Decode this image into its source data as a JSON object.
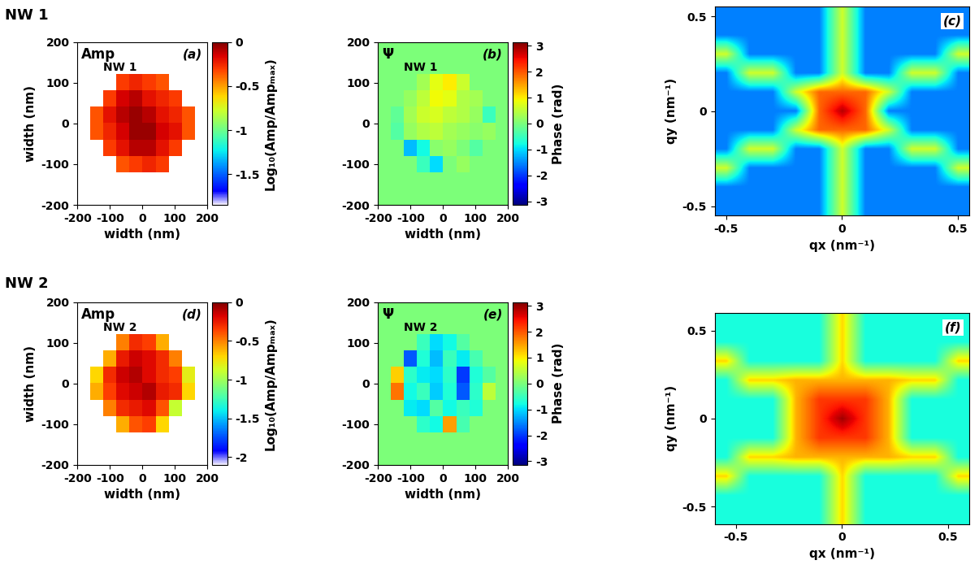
{
  "row_titles": [
    "NW 1",
    "NW 2"
  ],
  "chart_data": [
    {
      "type": "heatmap",
      "panel": "(a)",
      "labels": [
        "Amp",
        "NW 1"
      ],
      "xlabel": "width (nm)",
      "ylabel": "width (nm)",
      "xlim": [
        -200,
        200
      ],
      "ylim": [
        -200,
        200
      ],
      "xticks": [
        -200,
        -100,
        0,
        100,
        200
      ],
      "yticks": [
        -200,
        -100,
        0,
        100,
        200
      ],
      "zlim": [
        -1.85,
        0
      ],
      "zticks": [
        0,
        -0.5,
        -1,
        -1.5
      ],
      "zlabel": "Log₁₀(Amp/Ampₘₐₓ)",
      "cells": [
        [
          null,
          null,
          null,
          null,
          null,
          null,
          null,
          null,
          null,
          null
        ],
        [
          null,
          null,
          null,
          null,
          null,
          null,
          null,
          null,
          null,
          null
        ],
        [
          null,
          null,
          null,
          -0.3,
          -0.25,
          -0.3,
          -0.35,
          null,
          null,
          null
        ],
        [
          null,
          null,
          -0.3,
          -0.15,
          -0.1,
          -0.2,
          -0.25,
          -0.3,
          null,
          null
        ],
        [
          null,
          -0.35,
          -0.2,
          -0.1,
          -0.05,
          -0.1,
          -0.2,
          -0.25,
          -0.35,
          null
        ],
        [
          null,
          -0.35,
          -0.25,
          -0.15,
          -0.05,
          -0.05,
          -0.15,
          -0.2,
          -0.35,
          null
        ],
        [
          null,
          null,
          -0.3,
          -0.2,
          -0.1,
          -0.1,
          -0.2,
          -0.3,
          null,
          null
        ],
        [
          null,
          null,
          null,
          -0.35,
          -0.3,
          -0.25,
          -0.3,
          null,
          null,
          null
        ],
        [
          null,
          null,
          null,
          null,
          null,
          null,
          null,
          null,
          null,
          null
        ],
        [
          null,
          null,
          null,
          null,
          null,
          null,
          null,
          null,
          null,
          null
        ]
      ]
    },
    {
      "type": "heatmap",
      "panel": "(b)",
      "labels": [
        "Ψ",
        "NW 1"
      ],
      "xlabel": "width (nm)",
      "ylabel": "",
      "xlim": [
        -200,
        200
      ],
      "ylim": [
        -200,
        200
      ],
      "xticks": [
        -200,
        -100,
        0,
        100,
        200
      ],
      "yticks": [
        -200,
        -100,
        0,
        100,
        200
      ],
      "zlim": [
        -3.14,
        3.14
      ],
      "zticks": [
        3,
        2,
        1,
        0,
        -1,
        -2,
        -3
      ],
      "zlabel": "Phase (rad)",
      "cells": [
        [
          0,
          0,
          0,
          0,
          0,
          0,
          0,
          0,
          0,
          0
        ],
        [
          0,
          0,
          0,
          0,
          0,
          0,
          0,
          0,
          0,
          0
        ],
        [
          0,
          0,
          0,
          0.3,
          0.8,
          1.0,
          0.6,
          0,
          0,
          0
        ],
        [
          0,
          0,
          0.2,
          0.5,
          0.9,
          0.8,
          0.4,
          0.3,
          0,
          0
        ],
        [
          0,
          -0.2,
          0.3,
          0.6,
          0.7,
          0.5,
          0.4,
          0.2,
          -0.5,
          0
        ],
        [
          0,
          -0.3,
          0.2,
          0.4,
          0.5,
          0.3,
          0.2,
          0.1,
          0.2,
          0
        ],
        [
          0,
          0,
          -1.2,
          -0.8,
          0.1,
          0.2,
          0.0,
          -0.3,
          0,
          0
        ],
        [
          0,
          0,
          0,
          -0.5,
          -1.0,
          0.0,
          0.2,
          0,
          0,
          0
        ],
        [
          0,
          0,
          0,
          0,
          0,
          0,
          0,
          0,
          0,
          0
        ],
        [
          0,
          0,
          0,
          0,
          0,
          0,
          0,
          0,
          0,
          0
        ]
      ]
    },
    {
      "type": "heatmap",
      "panel": "(c)",
      "labels": [],
      "xlabel": "qx (nm⁻¹)",
      "ylabel": "qy (nm⁻¹)",
      "xlim": [
        -0.55,
        0.55
      ],
      "ylim": [
        -0.55,
        0.55
      ],
      "xticks": [
        -0.5,
        0,
        0.5
      ],
      "yticks": [
        -0.5,
        0,
        0.5
      ],
      "zlim": [
        0,
        1
      ],
      "cells": [
        [
          0.25,
          0.25,
          0.25,
          0.25,
          0.25,
          0.6,
          0.25,
          0.25,
          0.25,
          0.25,
          0.25
        ],
        [
          0.25,
          0.25,
          0.25,
          0.25,
          0.25,
          0.6,
          0.25,
          0.25,
          0.25,
          0.25,
          0.25
        ],
        [
          0.6,
          0.25,
          0.25,
          0.25,
          0.25,
          0.6,
          0.25,
          0.25,
          0.25,
          0.25,
          0.6
        ],
        [
          0.25,
          0.6,
          0.6,
          0.25,
          0.25,
          0.6,
          0.25,
          0.25,
          0.6,
          0.6,
          0.25
        ],
        [
          0.25,
          0.25,
          0.25,
          0.6,
          0.8,
          0.8,
          0.8,
          0.6,
          0.25,
          0.25,
          0.25
        ],
        [
          0.25,
          0.25,
          0.25,
          0.25,
          0.8,
          0.95,
          0.8,
          0.25,
          0.25,
          0.25,
          0.25
        ],
        [
          0.25,
          0.25,
          0.25,
          0.6,
          0.8,
          0.8,
          0.8,
          0.6,
          0.25,
          0.25,
          0.25
        ],
        [
          0.25,
          0.6,
          0.6,
          0.25,
          0.25,
          0.6,
          0.25,
          0.25,
          0.6,
          0.6,
          0.25
        ],
        [
          0.6,
          0.25,
          0.25,
          0.25,
          0.25,
          0.6,
          0.25,
          0.25,
          0.25,
          0.25,
          0.6
        ],
        [
          0.25,
          0.25,
          0.25,
          0.25,
          0.25,
          0.6,
          0.25,
          0.25,
          0.25,
          0.25,
          0.25
        ],
        [
          0.25,
          0.25,
          0.25,
          0.25,
          0.25,
          0.6,
          0.25,
          0.25,
          0.25,
          0.25,
          0.25
        ]
      ]
    },
    {
      "type": "heatmap",
      "panel": "(d)",
      "labels": [
        "Amp",
        "NW 2"
      ],
      "xlabel": "width (nm)",
      "ylabel": "width (nm)",
      "xlim": [
        -200,
        200
      ],
      "ylim": [
        -200,
        200
      ],
      "xticks": [
        -200,
        -100,
        0,
        100,
        200
      ],
      "yticks": [
        -200,
        -100,
        0,
        100,
        200
      ],
      "zlim": [
        -2.1,
        0
      ],
      "zticks": [
        0,
        -0.5,
        -1,
        -1.5,
        -2
      ],
      "zlabel": "Log₁₀(Amp/Ampₘₐₓ)",
      "cells": [
        [
          null,
          null,
          null,
          null,
          null,
          null,
          null,
          null,
          null,
          null
        ],
        [
          null,
          null,
          null,
          null,
          null,
          null,
          null,
          null,
          null,
          null
        ],
        [
          null,
          null,
          null,
          -0.5,
          -0.3,
          -0.35,
          -0.6,
          null,
          null,
          null
        ],
        [
          null,
          null,
          -0.6,
          -0.25,
          -0.15,
          -0.2,
          -0.3,
          -0.5,
          null,
          null
        ],
        [
          null,
          -0.7,
          -0.3,
          -0.15,
          -0.1,
          -0.2,
          -0.3,
          -0.35,
          -0.8,
          null
        ],
        [
          null,
          -0.6,
          -0.35,
          -0.2,
          -0.15,
          -0.1,
          -0.25,
          -0.3,
          -0.7,
          null
        ],
        [
          null,
          null,
          -0.5,
          -0.3,
          -0.25,
          -0.2,
          -0.4,
          -0.9,
          null,
          null
        ],
        [
          null,
          null,
          null,
          -0.6,
          -0.4,
          -0.35,
          -0.7,
          null,
          null,
          null
        ],
        [
          null,
          null,
          null,
          null,
          null,
          null,
          null,
          null,
          null,
          null
        ],
        [
          null,
          null,
          null,
          null,
          null,
          null,
          null,
          null,
          null,
          null
        ]
      ]
    },
    {
      "type": "heatmap",
      "panel": "(e)",
      "labels": [
        "Ψ",
        "NW 2"
      ],
      "xlabel": "width (nm)",
      "ylabel": "",
      "xlim": [
        -200,
        200
      ],
      "ylim": [
        -200,
        200
      ],
      "xticks": [
        -200,
        -100,
        0,
        100,
        200
      ],
      "yticks": [
        -200,
        -100,
        0,
        100,
        200
      ],
      "zlim": [
        -3.14,
        3.14
      ],
      "zticks": [
        3,
        2,
        1,
        0,
        -1,
        -2,
        -3
      ],
      "zlabel": "Phase (rad)",
      "cells": [
        [
          0,
          0,
          0,
          0,
          0,
          0,
          0,
          0,
          0,
          0
        ],
        [
          0,
          0,
          0,
          0,
          0,
          0,
          0,
          0,
          0,
          0
        ],
        [
          0,
          0,
          0,
          -0.5,
          -1.0,
          -0.8,
          -0.3,
          0,
          0,
          0
        ],
        [
          0,
          0,
          -1.8,
          -0.7,
          -1.2,
          -0.5,
          -0.9,
          -0.4,
          0,
          0
        ],
        [
          0,
          1.2,
          -0.6,
          -0.9,
          -1.0,
          -0.6,
          -2.0,
          -0.7,
          -0.3,
          0
        ],
        [
          0,
          1.8,
          -0.8,
          -0.5,
          -1.1,
          -0.7,
          -1.8,
          -0.6,
          0.5,
          0
        ],
        [
          0,
          0,
          -0.9,
          -1.0,
          -0.3,
          -0.8,
          -0.5,
          -0.7,
          0,
          0
        ],
        [
          0,
          0,
          0,
          -0.6,
          -0.8,
          1.5,
          -0.4,
          0,
          0,
          0
        ],
        [
          0,
          0,
          0,
          0,
          0,
          0,
          0,
          0,
          0,
          0
        ],
        [
          0,
          0,
          0,
          0,
          0,
          0,
          0,
          0,
          0,
          0
        ]
      ]
    },
    {
      "type": "heatmap",
      "panel": "(f)",
      "labels": [],
      "xlabel": "qx (nm⁻¹)",
      "ylabel": "qy (nm⁻¹)",
      "xlim": [
        -0.6,
        0.6
      ],
      "ylim": [
        -0.6,
        0.6
      ],
      "xticks": [
        -0.5,
        0,
        0.5
      ],
      "yticks": [
        -0.5,
        0,
        0.5
      ],
      "zlim": [
        0,
        1
      ],
      "cells": [
        [
          0.38,
          0.38,
          0.38,
          0.38,
          0.38,
          0.68,
          0.38,
          0.38,
          0.38,
          0.38,
          0.38
        ],
        [
          0.38,
          0.38,
          0.38,
          0.38,
          0.38,
          0.68,
          0.38,
          0.38,
          0.38,
          0.38,
          0.38
        ],
        [
          0.68,
          0.38,
          0.38,
          0.38,
          0.38,
          0.68,
          0.38,
          0.38,
          0.38,
          0.38,
          0.68
        ],
        [
          0.38,
          0.68,
          0.68,
          0.72,
          0.72,
          0.72,
          0.72,
          0.72,
          0.68,
          0.68,
          0.38
        ],
        [
          0.38,
          0.38,
          0.38,
          0.72,
          0.85,
          0.85,
          0.85,
          0.72,
          0.38,
          0.38,
          0.38
        ],
        [
          0.38,
          0.38,
          0.38,
          0.72,
          0.85,
          0.97,
          0.85,
          0.72,
          0.38,
          0.38,
          0.38
        ],
        [
          0.38,
          0.38,
          0.38,
          0.72,
          0.85,
          0.85,
          0.85,
          0.72,
          0.38,
          0.38,
          0.38
        ],
        [
          0.38,
          0.68,
          0.68,
          0.72,
          0.72,
          0.72,
          0.72,
          0.72,
          0.68,
          0.68,
          0.38
        ],
        [
          0.68,
          0.38,
          0.38,
          0.38,
          0.38,
          0.68,
          0.38,
          0.38,
          0.38,
          0.38,
          0.68
        ],
        [
          0.38,
          0.38,
          0.38,
          0.38,
          0.38,
          0.68,
          0.38,
          0.38,
          0.38,
          0.38,
          0.38
        ],
        [
          0.38,
          0.38,
          0.38,
          0.38,
          0.38,
          0.68,
          0.38,
          0.38,
          0.38,
          0.38,
          0.38
        ]
      ]
    }
  ]
}
